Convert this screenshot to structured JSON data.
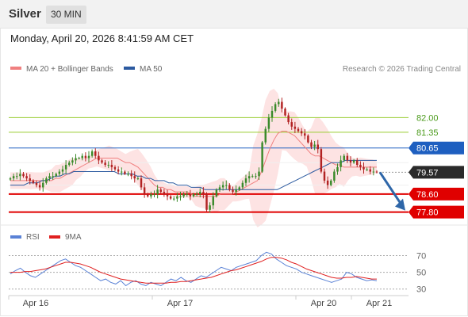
{
  "header": {
    "instrument": "Silver",
    "timeframe": "30 MIN"
  },
  "timestamp": "Monday, April 20, 2026 8:41:59 AM CET",
  "price_chart": {
    "legend": [
      {
        "label": "MA 20 + Bollinger Bands",
        "color": "#f08080"
      },
      {
        "label": "MA 50",
        "color": "#2c5aa0"
      }
    ],
    "copyright": "Research © 2026 Trading Central"
  },
  "rsi_chart": {
    "legend": [
      {
        "label": "RSI",
        "color": "#5a82d6"
      },
      {
        "label": "9MA",
        "color": "#e02020"
      }
    ]
  },
  "colors": {
    "up_candle": "#3a8a2a",
    "down_candle": "#b22222",
    "resistance": "#9acd32",
    "pivot": "#1e5fc0",
    "support": "#e00000",
    "bollinger_fill": "#fde3e3",
    "current_price": "#2a2a2a",
    "projection_arrow": "#2e66a8"
  },
  "chart_data": [
    {
      "type": "candlestick",
      "title": "Silver",
      "x_tick_labels": [
        "Apr 16",
        "Apr 17",
        "Apr 20",
        "Apr 21"
      ],
      "ylim": [
        77.4,
        83.6
      ],
      "levels": [
        {
          "label": "82.00",
          "value": 82.0,
          "kind": "resistance"
        },
        {
          "label": "81.35",
          "value": 81.35,
          "kind": "resistance"
        },
        {
          "label": "80.65",
          "value": 80.65,
          "kind": "pivot"
        },
        {
          "label": "79.57",
          "value": 79.57,
          "kind": "last_price"
        },
        {
          "label": "78.60",
          "value": 78.6,
          "kind": "support"
        },
        {
          "label": "77.80",
          "value": 77.8,
          "kind": "support"
        }
      ],
      "close": [
        79.3,
        79.4,
        79.4,
        79.5,
        79.4,
        79.3,
        79.2,
        79.1,
        79.0,
        78.9,
        79.1,
        79.3,
        79.4,
        79.4,
        79.5,
        79.6,
        79.7,
        79.9,
        80.0,
        80.1,
        80.2,
        80.2,
        80.3,
        80.2,
        80.3,
        80.5,
        80.3,
        80.1,
        80.0,
        79.9,
        79.9,
        79.8,
        79.7,
        79.6,
        79.6,
        79.5,
        79.5,
        79.4,
        79.3,
        79.3,
        78.9,
        78.6,
        78.5,
        78.6,
        78.6,
        78.8,
        78.7,
        78.6,
        78.5,
        78.4,
        78.4,
        78.5,
        78.5,
        78.6,
        78.6,
        78.5,
        78.6,
        78.6,
        78.7,
        78.6,
        77.9,
        78.1,
        78.5,
        78.8,
        78.9,
        79.0,
        79.0,
        78.8,
        78.7,
        78.8,
        78.9,
        79.1,
        79.3,
        79.4,
        79.4,
        79.4,
        79.6,
        80.9,
        81.5,
        82.0,
        82.3,
        82.6,
        82.7,
        82.4,
        82.1,
        81.8,
        81.6,
        81.5,
        81.4,
        81.3,
        81.2,
        80.9,
        80.7,
        80.8,
        80.6,
        79.6,
        79.2,
        79.0,
        79.2,
        79.6,
        79.8,
        80.1,
        80.3,
        80.1,
        80.0,
        80.1,
        79.9,
        79.8,
        79.7,
        79.7,
        79.6,
        79.6,
        79.57
      ],
      "ma20": [
        79.2,
        79.2,
        79.2,
        79.2,
        79.2,
        79.2,
        79.2,
        79.2,
        79.2,
        79.2,
        79.2,
        79.3,
        79.3,
        79.4,
        79.5,
        79.6,
        79.7,
        79.8,
        79.9,
        80.0,
        80.1,
        80.2,
        80.2,
        80.2,
        80.2,
        80.2,
        80.2,
        80.1,
        80.0,
        80.0,
        79.9,
        79.8,
        79.6,
        79.4,
        79.2,
        79.0,
        78.9,
        78.9,
        78.8,
        78.8,
        78.7,
        78.7,
        78.7,
        78.7,
        78.6,
        78.5,
        78.5,
        78.5,
        78.5,
        78.5,
        78.5,
        78.6,
        78.6,
        78.6,
        78.6,
        78.7,
        78.8,
        78.9,
        79.0,
        79.1,
        79.2,
        79.6,
        80.1,
        80.6,
        81.0,
        81.3,
        81.4,
        81.4,
        81.3,
        81.2,
        81.0,
        80.8,
        80.6,
        80.4,
        80.3,
        80.3,
        80.2,
        80.1,
        80.0,
        79.9,
        79.9,
        79.8,
        79.8,
        79.8,
        79.8,
        79.8,
        79.8,
        79.8,
        79.8,
        79.8
      ],
      "ma50": [
        79.0,
        79.0,
        79.0,
        79.0,
        79.1,
        79.1,
        79.1,
        79.2,
        79.2,
        79.3,
        79.4,
        79.4,
        79.5,
        79.5,
        79.6,
        79.6,
        79.6,
        79.6,
        79.6,
        79.6,
        79.6,
        79.6,
        79.6,
        79.6,
        79.5,
        79.5,
        79.5,
        79.5,
        79.4,
        79.4,
        79.3,
        79.3,
        79.2,
        79.2,
        79.2,
        79.1,
        79.1,
        79.0,
        79.0,
        79.0,
        78.9,
        78.9,
        78.9,
        78.8,
        78.8,
        78.8,
        78.8,
        78.8,
        78.8,
        78.8,
        78.8,
        78.8,
        78.8,
        78.8,
        78.8,
        78.8,
        78.8,
        78.8,
        78.8,
        78.8,
        78.9,
        79.0,
        79.1,
        79.2,
        79.3,
        79.4,
        79.5,
        79.6,
        79.7,
        79.8,
        79.9,
        80.0,
        80.0,
        80.0,
        80.1,
        80.1,
        80.1,
        80.1,
        80.1,
        80.1,
        80.1,
        80.1
      ]
    },
    {
      "type": "line",
      "title": "RSI",
      "x_tick_labels": [
        "Apr 16",
        "Apr 17",
        "Apr 20",
        "Apr 21"
      ],
      "ylim": [
        25,
        80
      ],
      "y_ticks": [
        "70",
        "50",
        "30"
      ],
      "y_tick_values": [
        70,
        50,
        30
      ],
      "series": [
        {
          "name": "RSI",
          "values": [
            48,
            52,
            55,
            50,
            46,
            44,
            48,
            52,
            56,
            60,
            64,
            66,
            62,
            58,
            56,
            52,
            48,
            44,
            40,
            42,
            38,
            36,
            40,
            34,
            38,
            40,
            36,
            34,
            38,
            36,
            34,
            38,
            42,
            40,
            44,
            40,
            38,
            42,
            46,
            44,
            48,
            52,
            56,
            54,
            52,
            56,
            58,
            60,
            62,
            64,
            70,
            74,
            72,
            66,
            62,
            58,
            56,
            54,
            50,
            48,
            46,
            44,
            42,
            40,
            38,
            40,
            42,
            50,
            48,
            44,
            42,
            40,
            41,
            40
          ]
        },
        {
          "name": "9MA",
          "values": [
            50,
            50,
            50,
            51,
            51,
            52,
            53,
            54,
            56,
            58,
            60,
            62,
            62,
            61,
            60,
            58,
            56,
            53,
            50,
            48,
            46,
            44,
            42,
            41,
            40,
            39,
            38,
            37,
            37,
            37,
            37,
            37,
            38,
            38,
            39,
            39,
            40,
            41,
            42,
            43,
            44,
            46,
            48,
            50,
            52,
            53,
            55,
            57,
            59,
            61,
            63,
            66,
            68,
            68,
            67,
            65,
            62,
            60,
            57,
            54,
            52,
            50,
            48,
            46,
            44,
            43,
            43,
            44,
            44,
            45,
            44,
            43,
            42,
            42
          ]
        }
      ]
    }
  ]
}
